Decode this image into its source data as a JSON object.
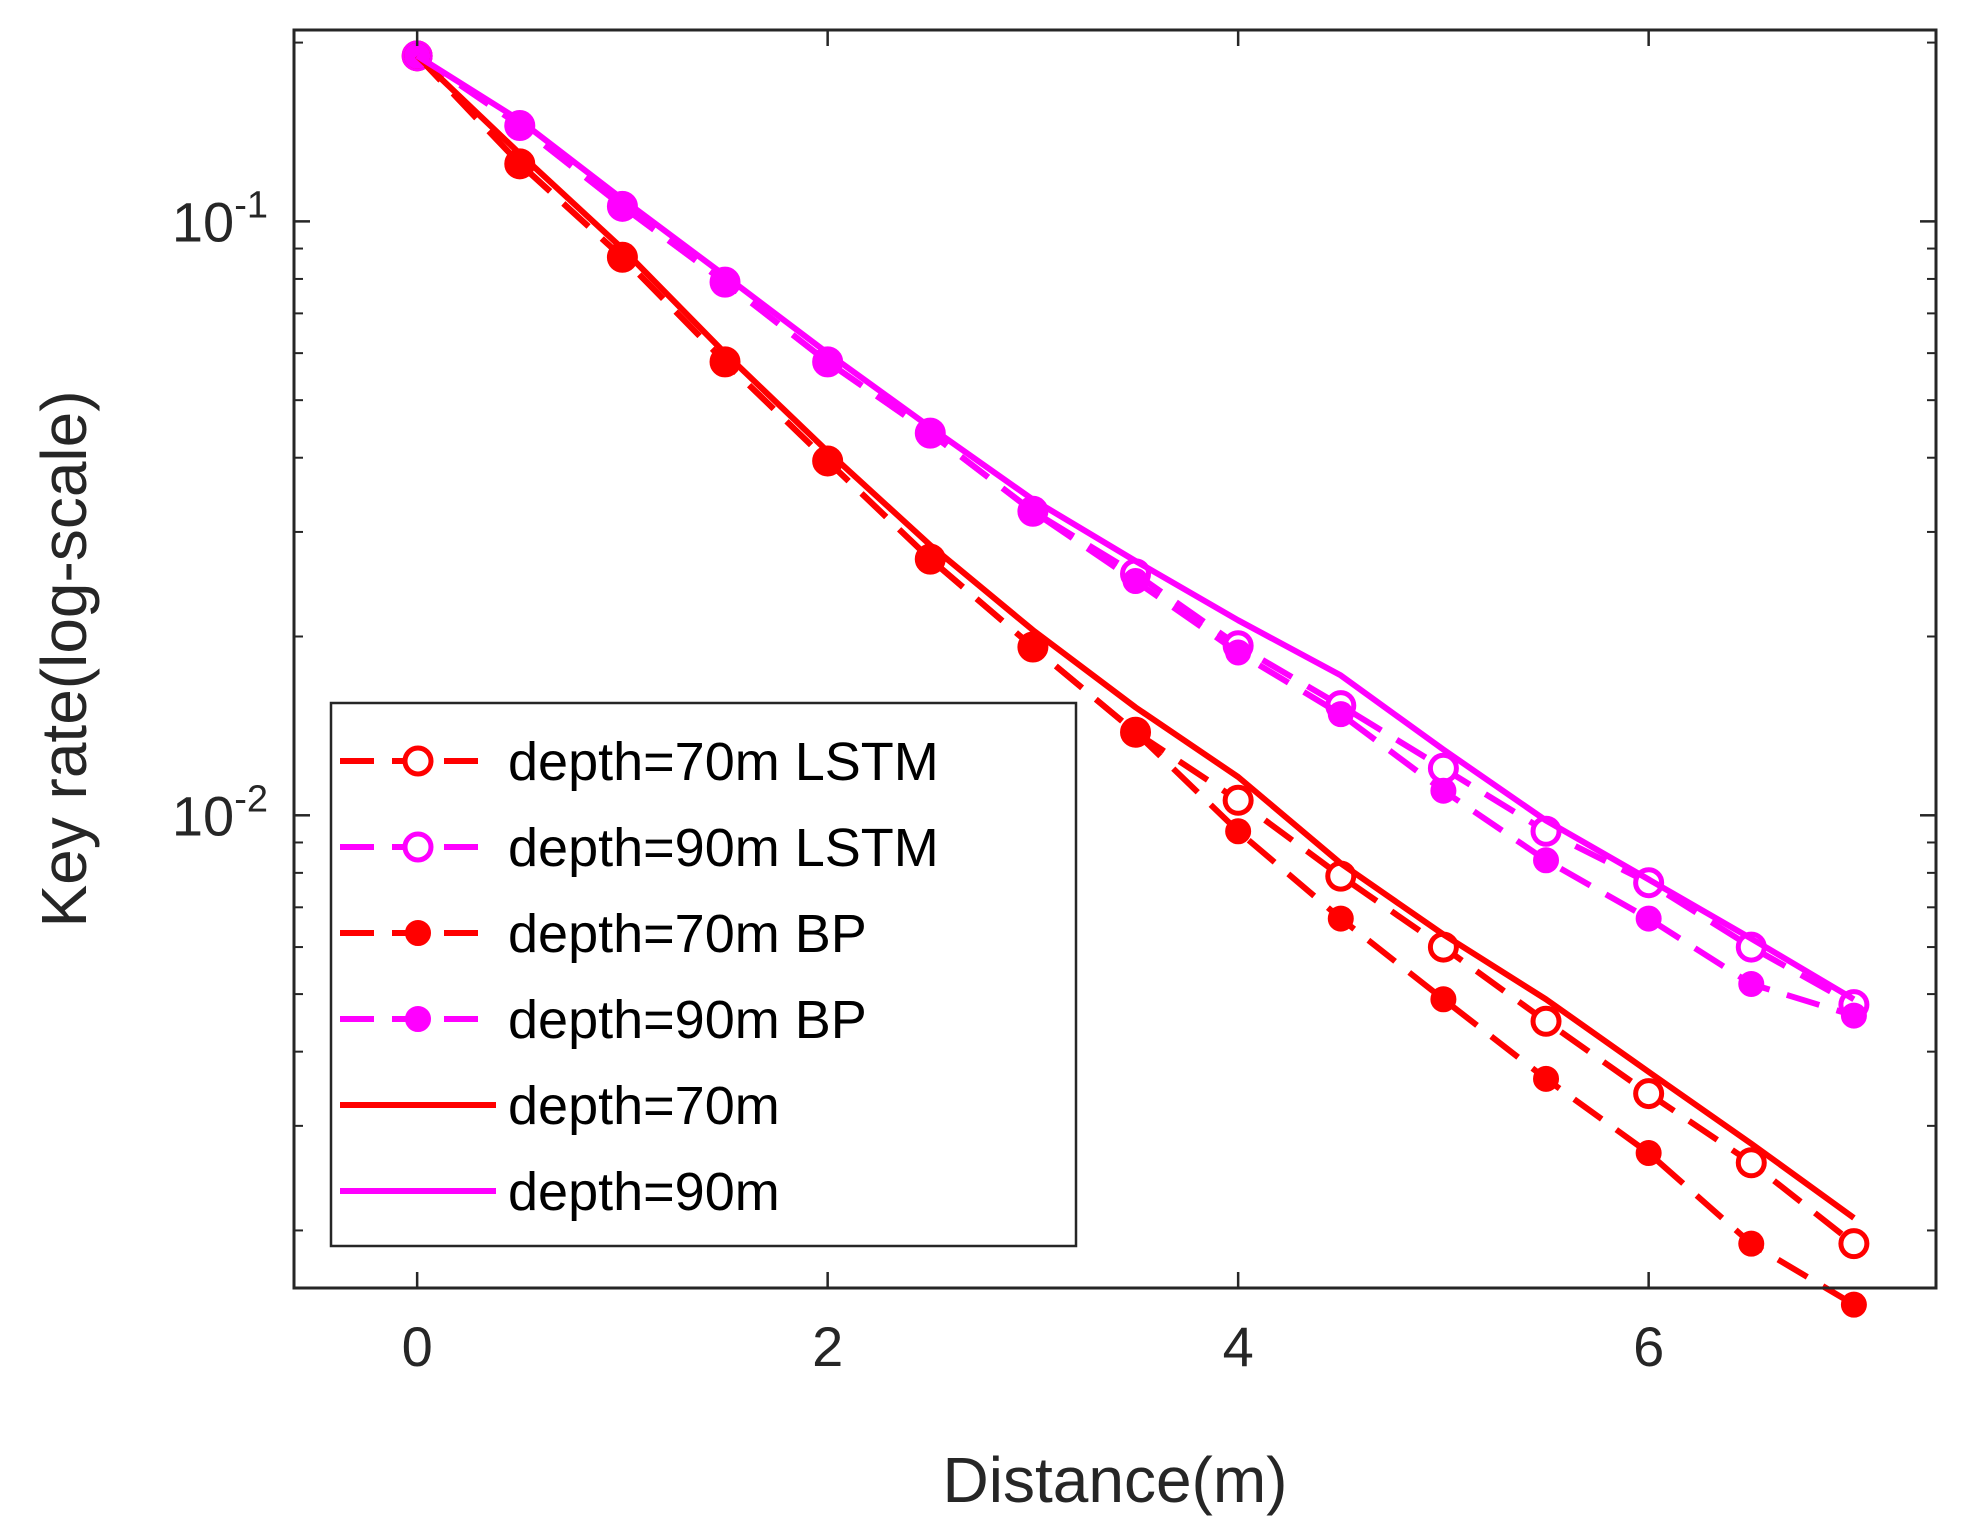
{
  "chart_data": {
    "type": "line",
    "title": "",
    "xlabel": "Distance(m)",
    "ylabel": "Key rate(log-scale)",
    "xlim": [
      -0.6,
      7.4
    ],
    "ylim": [
      0.0016,
      0.21
    ],
    "yscale": "log",
    "xticks": [
      0,
      2,
      4,
      6
    ],
    "xtick_labels": [
      "0",
      "2",
      "4",
      "6"
    ],
    "yticks": [
      {
        "value": 0.1,
        "base": "10",
        "exp": "-1"
      },
      {
        "value": 0.01,
        "base": "10",
        "exp": "-2"
      }
    ],
    "grid": false,
    "legend_position": "bottom-left",
    "series": [
      {
        "name": "depth=70m LSTM",
        "color": "#ff0000",
        "line": "dashed",
        "marker": "open-circle",
        "x": [
          0,
          0.5,
          1,
          1.5,
          2,
          2.5,
          3,
          3.5,
          4,
          4.5,
          5,
          5.5,
          6,
          6.5,
          7
        ],
        "values": [
          0.19,
          0.125,
          0.087,
          0.058,
          0.0395,
          0.027,
          0.0192,
          0.0138,
          0.0106,
          0.0079,
          0.006,
          0.0045,
          0.0034,
          0.0026,
          0.0019
        ]
      },
      {
        "name": "depth=90m LSTM",
        "color": "#ff00ff",
        "line": "dashed",
        "marker": "open-circle",
        "x": [
          0,
          0.5,
          1,
          1.5,
          2,
          2.5,
          3,
          3.5,
          4,
          4.5,
          5,
          5.5,
          6,
          6.5,
          7
        ],
        "values": [
          0.19,
          0.145,
          0.106,
          0.079,
          0.058,
          0.044,
          0.0325,
          0.0255,
          0.0193,
          0.0153,
          0.012,
          0.0094,
          0.0077,
          0.006,
          0.0048
        ]
      },
      {
        "name": "depth=70m BP",
        "color": "#ff0000",
        "line": "dashed",
        "marker": "filled-circle",
        "x": [
          0,
          0.5,
          1,
          1.5,
          2,
          2.5,
          3,
          3.5,
          4,
          4.5,
          5,
          5.5,
          6,
          6.5,
          7
        ],
        "values": [
          0.19,
          0.125,
          0.087,
          0.058,
          0.0395,
          0.027,
          0.0192,
          0.0138,
          0.0094,
          0.0067,
          0.0049,
          0.0036,
          0.0027,
          0.0019,
          0.0015
        ]
      },
      {
        "name": "depth=90m BP",
        "color": "#ff00ff",
        "line": "dashed",
        "marker": "filled-circle",
        "x": [
          0,
          0.5,
          1,
          1.5,
          2,
          2.5,
          3,
          3.5,
          4,
          4.5,
          5,
          5.5,
          6,
          6.5,
          7
        ],
        "values": [
          0.19,
          0.145,
          0.106,
          0.079,
          0.058,
          0.044,
          0.0325,
          0.0248,
          0.0188,
          0.0148,
          0.011,
          0.0084,
          0.0067,
          0.0052,
          0.0046
        ]
      },
      {
        "name": "depth=70m",
        "color": "#ff0000",
        "line": "solid",
        "marker": "none",
        "x": [
          0,
          0.5,
          1,
          1.5,
          2,
          2.5,
          3,
          3.5,
          4,
          4.5,
          5,
          5.5,
          6,
          6.5,
          7
        ],
        "values": [
          0.19,
          0.13,
          0.09,
          0.06,
          0.041,
          0.0285,
          0.0205,
          0.0152,
          0.0116,
          0.0083,
          0.0063,
          0.0049,
          0.0037,
          0.0028,
          0.0021
        ]
      },
      {
        "name": "depth=90m",
        "color": "#ff00ff",
        "line": "solid",
        "marker": "none",
        "x": [
          0,
          0.5,
          1,
          1.5,
          2,
          2.5,
          3,
          3.5,
          4,
          4.5,
          5,
          5.5,
          6,
          6.5,
          7
        ],
        "values": [
          0.19,
          0.148,
          0.109,
          0.081,
          0.06,
          0.045,
          0.034,
          0.0268,
          0.0213,
          0.0172,
          0.0129,
          0.0098,
          0.0078,
          0.0062,
          0.0049
        ]
      }
    ]
  }
}
